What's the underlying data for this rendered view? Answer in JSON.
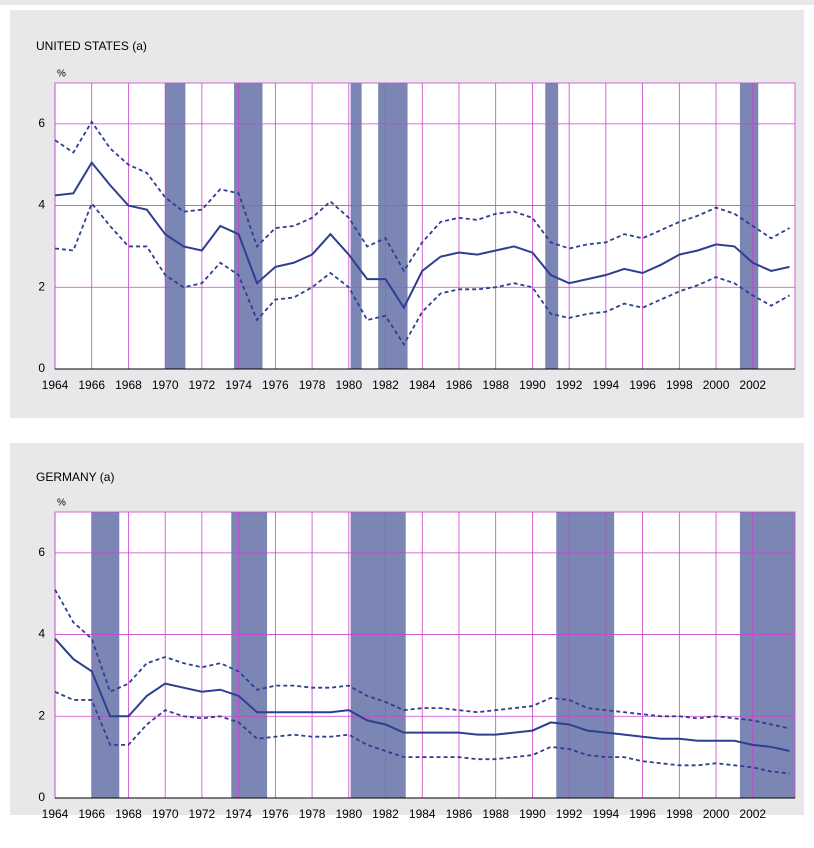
{
  "chart_data": [
    {
      "type": "line",
      "title": "UNITED STATES (a)",
      "y_label": "%",
      "x": [
        1964,
        1965,
        1966,
        1967,
        1968,
        1969,
        1970,
        1971,
        1972,
        1973,
        1974,
        1975,
        1976,
        1977,
        1978,
        1979,
        1980,
        1981,
        1982,
        1983,
        1984,
        1985,
        1986,
        1987,
        1988,
        1989,
        1990,
        1991,
        1992,
        1993,
        1994,
        1995,
        1996,
        1997,
        1998,
        1999,
        2000,
        2001,
        2002,
        2003,
        2004
      ],
      "xlim": [
        1964,
        2004.3
      ],
      "xticks": [
        1964,
        1966,
        1968,
        1970,
        1972,
        1974,
        1976,
        1978,
        1980,
        1982,
        1984,
        1986,
        1988,
        1990,
        1992,
        1994,
        1996,
        1998,
        2000,
        2002
      ],
      "ylim": [
        0,
        7
      ],
      "yticks": [
        0,
        2,
        4,
        6
      ],
      "grid": true,
      "shade_color": "#7b86b5",
      "shaded_periods": [
        [
          1970,
          1971.1
        ],
        [
          1973.75,
          1975.3
        ],
        [
          1980.1,
          1980.7
        ],
        [
          1981.6,
          1983.2
        ],
        [
          1990.7,
          1991.4
        ],
        [
          2001.3,
          2002.3
        ]
      ],
      "series": [
        {
          "color": "#2e3f8f",
          "style": "solid",
          "values": [
            4.25,
            4.3,
            5.05,
            4.5,
            4.0,
            3.9,
            3.3,
            3.0,
            2.9,
            3.5,
            3.3,
            2.1,
            2.5,
            2.6,
            2.8,
            3.3,
            2.8,
            2.2,
            2.2,
            1.5,
            2.4,
            2.75,
            2.85,
            2.8,
            2.9,
            3.0,
            2.85,
            2.3,
            2.1,
            2.2,
            2.3,
            2.45,
            2.35,
            2.55,
            2.8,
            2.9,
            3.05,
            3.0,
            2.6,
            2.4,
            2.5
          ]
        },
        {
          "color": "#2e3f8f",
          "style": "dashed",
          "values": [
            5.6,
            5.3,
            6.05,
            5.4,
            5.0,
            4.8,
            4.2,
            3.85,
            3.9,
            4.4,
            4.3,
            3.0,
            3.45,
            3.5,
            3.7,
            4.1,
            3.7,
            3.0,
            3.2,
            2.4,
            3.1,
            3.6,
            3.7,
            3.65,
            3.8,
            3.85,
            3.7,
            3.1,
            2.95,
            3.05,
            3.1,
            3.3,
            3.2,
            3.4,
            3.6,
            3.75,
            3.95,
            3.8,
            3.5,
            3.2,
            3.45
          ]
        },
        {
          "color": "#2e3f8f",
          "style": "dashed",
          "values": [
            2.95,
            2.9,
            4.05,
            3.5,
            3.0,
            3.0,
            2.3,
            2.0,
            2.1,
            2.6,
            2.3,
            1.2,
            1.7,
            1.75,
            2.0,
            2.35,
            2.0,
            1.2,
            1.3,
            0.6,
            1.4,
            1.85,
            1.95,
            1.95,
            2.0,
            2.1,
            2.0,
            1.35,
            1.25,
            1.35,
            1.4,
            1.6,
            1.5,
            1.7,
            1.9,
            2.05,
            2.25,
            2.1,
            1.8,
            1.55,
            1.8
          ]
        }
      ]
    },
    {
      "type": "line",
      "title": "GERMANY (a)",
      "y_label": "%",
      "x": [
        1964,
        1965,
        1966,
        1967,
        1968,
        1969,
        1970,
        1971,
        1972,
        1973,
        1974,
        1975,
        1976,
        1977,
        1978,
        1979,
        1980,
        1981,
        1982,
        1983,
        1984,
        1985,
        1986,
        1987,
        1988,
        1989,
        1990,
        1991,
        1992,
        1993,
        1994,
        1995,
        1996,
        1997,
        1998,
        1999,
        2000,
        2001,
        2002,
        2003,
        2004
      ],
      "xlim": [
        1964,
        2004.3
      ],
      "xticks": [
        1964,
        1966,
        1968,
        1970,
        1972,
        1974,
        1976,
        1978,
        1980,
        1982,
        1984,
        1986,
        1988,
        1990,
        1992,
        1994,
        1996,
        1998,
        2000,
        2002
      ],
      "ylim": [
        0,
        7
      ],
      "yticks": [
        0,
        2,
        4,
        6
      ],
      "grid": true,
      "shade_color": "#7b86b5",
      "shaded_periods": [
        [
          1966.0,
          1967.5
        ],
        [
          1973.6,
          1975.55
        ],
        [
          1980.1,
          1983.1
        ],
        [
          1991.3,
          1994.45
        ],
        [
          2001.3,
          2004.3
        ]
      ],
      "series": [
        {
          "color": "#2e3f8f",
          "style": "solid",
          "values": [
            3.9,
            3.4,
            3.1,
            2.0,
            2.0,
            2.5,
            2.8,
            2.7,
            2.6,
            2.65,
            2.5,
            2.1,
            2.1,
            2.1,
            2.1,
            2.1,
            2.15,
            1.9,
            1.8,
            1.6,
            1.6,
            1.6,
            1.6,
            1.55,
            1.55,
            1.6,
            1.65,
            1.85,
            1.8,
            1.65,
            1.6,
            1.55,
            1.5,
            1.45,
            1.45,
            1.4,
            1.4,
            1.4,
            1.3,
            1.25,
            1.15
          ]
        },
        {
          "color": "#2e3f8f",
          "style": "dashed",
          "values": [
            5.1,
            4.3,
            3.9,
            2.6,
            2.8,
            3.3,
            3.45,
            3.3,
            3.2,
            3.3,
            3.1,
            2.65,
            2.75,
            2.75,
            2.7,
            2.7,
            2.75,
            2.5,
            2.35,
            2.15,
            2.2,
            2.2,
            2.15,
            2.1,
            2.15,
            2.2,
            2.25,
            2.45,
            2.4,
            2.2,
            2.15,
            2.1,
            2.05,
            2.0,
            2.0,
            1.95,
            2.0,
            1.95,
            1.9,
            1.8,
            1.7
          ]
        },
        {
          "color": "#2e3f8f",
          "style": "dashed",
          "values": [
            2.6,
            2.4,
            2.4,
            1.3,
            1.3,
            1.8,
            2.15,
            2.0,
            1.95,
            2.0,
            1.85,
            1.45,
            1.5,
            1.55,
            1.5,
            1.5,
            1.55,
            1.3,
            1.15,
            1.0,
            1.0,
            1.0,
            1.0,
            0.95,
            0.95,
            1.0,
            1.05,
            1.25,
            1.2,
            1.05,
            1.0,
            1.0,
            0.9,
            0.85,
            0.8,
            0.8,
            0.85,
            0.8,
            0.75,
            0.65,
            0.6
          ]
        }
      ]
    }
  ]
}
